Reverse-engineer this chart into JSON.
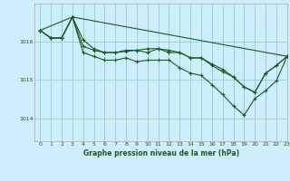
{
  "title": "Graphe pression niveau de la mer (hPa)",
  "background_color": "#cceeff",
  "grid_color": "#99cccc",
  "line_color": "#1a5c1a",
  "xlim": [
    -0.5,
    23
  ],
  "ylim": [
    1013.4,
    1017.0
  ],
  "yticks": [
    1014,
    1015,
    1016
  ],
  "xticks": [
    0,
    1,
    2,
    3,
    4,
    5,
    6,
    7,
    8,
    9,
    10,
    11,
    12,
    13,
    14,
    15,
    16,
    17,
    18,
    19,
    20,
    21,
    22,
    23
  ],
  "line1_x": [
    0,
    1,
    2,
    3,
    4,
    5,
    6,
    7,
    8,
    9,
    10,
    11,
    12,
    13,
    14,
    15,
    16,
    17,
    18,
    19,
    20,
    21,
    22,
    23
  ],
  "line1_y": [
    1016.3,
    1016.1,
    1016.1,
    1016.65,
    1016.05,
    1015.82,
    1015.72,
    1015.72,
    1015.75,
    1015.78,
    1015.72,
    1015.82,
    1015.72,
    1015.72,
    1015.58,
    1015.58,
    1015.42,
    1015.28,
    1015.08,
    1014.82,
    1014.68,
    1015.18,
    1015.38,
    1015.62
  ],
  "line2_x": [
    0,
    1,
    2,
    3,
    4,
    5,
    6,
    7,
    8,
    9,
    10,
    11,
    12,
    13,
    14,
    15,
    16,
    17,
    18,
    19,
    20,
    21,
    22,
    23
  ],
  "line2_y": [
    1016.3,
    1016.1,
    1016.1,
    1016.65,
    1015.88,
    1015.78,
    1015.72,
    1015.72,
    1015.78,
    1015.78,
    1015.82,
    1015.82,
    1015.78,
    1015.72,
    1015.58,
    1015.58,
    1015.38,
    1015.22,
    1015.08,
    1014.82,
    1014.68,
    1015.18,
    1015.38,
    1015.62
  ],
  "line3_x": [
    0,
    1,
    2,
    3,
    4,
    5,
    6,
    7,
    8,
    9,
    10,
    11,
    12,
    13,
    14,
    15,
    16,
    17,
    18,
    19,
    20,
    21,
    22,
    23
  ],
  "line3_y": [
    1016.3,
    1016.1,
    1016.1,
    1016.65,
    1015.72,
    1015.62,
    1015.52,
    1015.52,
    1015.58,
    1015.48,
    1015.52,
    1015.52,
    1015.52,
    1015.32,
    1015.18,
    1015.12,
    1014.88,
    1014.62,
    1014.32,
    1014.08,
    1014.52,
    1014.72,
    1014.98,
    1015.62
  ],
  "line4_x": [
    0,
    3,
    23
  ],
  "line4_y": [
    1016.3,
    1016.65,
    1015.62
  ]
}
